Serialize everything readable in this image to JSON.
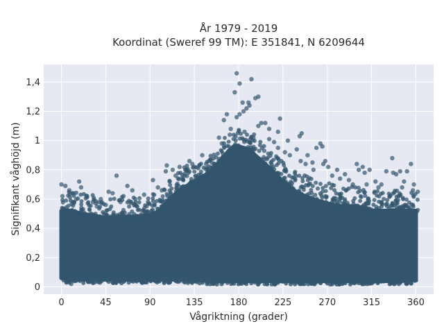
{
  "chart_data": {
    "type": "scatter",
    "title_line1": "År 1979 - 2019",
    "title_line2": "Koordinat (Sweref 99 TM): E 351841, N 6209644",
    "xlabel": "Vågriktning (grader)",
    "ylabel": "Signifikant våghöjd (m)",
    "xlim": [
      -18,
      378
    ],
    "ylim": [
      -0.05,
      1.52
    ],
    "x_ticks": [
      0,
      45,
      90,
      135,
      180,
      225,
      270,
      315,
      360
    ],
    "x_tick_labels": [
      "0",
      "45",
      "90",
      "135",
      "180",
      "225",
      "270",
      "315",
      "360"
    ],
    "y_ticks": [
      0,
      0.2,
      0.4,
      0.6,
      0.8,
      1.0,
      1.2,
      1.4
    ],
    "y_tick_labels": [
      "0",
      "0,2",
      "0,4",
      "0,6",
      "0,8",
      "1",
      "1,2",
      "1,4"
    ],
    "grid": true,
    "marker_color": "#33566e",
    "background_color": "#e6e9f1",
    "density_envelope": {
      "x": [
        0,
        10,
        20,
        30,
        45,
        60,
        75,
        90,
        100,
        110,
        120,
        135,
        150,
        160,
        170,
        175,
        180,
        190,
        200,
        210,
        225,
        240,
        255,
        270,
        285,
        300,
        315,
        330,
        345,
        360
      ],
      "lower": [
        0.06,
        0.05,
        0.05,
        0.05,
        0.05,
        0.05,
        0.05,
        0.05,
        0.05,
        0.05,
        0.05,
        0.05,
        0.04,
        0.04,
        0.04,
        0.04,
        0.04,
        0.04,
        0.04,
        0.04,
        0.04,
        0.04,
        0.04,
        0.04,
        0.04,
        0.04,
        0.04,
        0.04,
        0.04,
        0.05
      ],
      "upper": [
        0.52,
        0.52,
        0.5,
        0.49,
        0.47,
        0.48,
        0.48,
        0.49,
        0.52,
        0.6,
        0.66,
        0.72,
        0.78,
        0.85,
        0.93,
        0.96,
        0.96,
        0.94,
        0.88,
        0.82,
        0.72,
        0.64,
        0.6,
        0.57,
        0.55,
        0.55,
        0.52,
        0.52,
        0.52,
        0.52
      ]
    },
    "outlier_points": [
      [
        178,
        1.46
      ],
      [
        193,
        1.42
      ],
      [
        181,
        1.39
      ],
      [
        176,
        1.33
      ],
      [
        200,
        1.3
      ],
      [
        197,
        1.29
      ],
      [
        184,
        1.26
      ],
      [
        190,
        1.26
      ],
      [
        191,
        1.24
      ],
      [
        188,
        1.22
      ],
      [
        185,
        1.2
      ],
      [
        168,
        1.18
      ],
      [
        181,
        1.18
      ],
      [
        178,
        1.16
      ],
      [
        222,
        1.15
      ],
      [
        165,
        1.14
      ],
      [
        203,
        1.12
      ],
      [
        207,
        1.12
      ],
      [
        200,
        1.1
      ],
      [
        211,
        1.08
      ],
      [
        172,
        1.08
      ],
      [
        220,
        1.06
      ],
      [
        244,
        1.05
      ],
      [
        242,
        1.03
      ],
      [
        160,
        1.02
      ],
      [
        211,
        1.01
      ],
      [
        230,
        1.0
      ],
      [
        263,
        0.98
      ],
      [
        265,
        0.96
      ],
      [
        259,
        0.95
      ],
      [
        220,
        0.95
      ],
      [
        239,
        0.94
      ],
      [
        206,
        0.93
      ],
      [
        227,
        0.92
      ],
      [
        143,
        0.9
      ],
      [
        250,
        0.9
      ],
      [
        243,
        0.86
      ],
      [
        268,
        0.86
      ],
      [
        255,
        0.85
      ],
      [
        336,
        0.88
      ],
      [
        306,
        0.82
      ],
      [
        302,
        0.8
      ],
      [
        313,
        0.8
      ],
      [
        280,
        0.8
      ],
      [
        308,
        0.78
      ],
      [
        266,
        0.84
      ],
      [
        130,
        0.86
      ],
      [
        355,
        0.84
      ],
      [
        271,
        0.82
      ],
      [
        300,
        0.84
      ],
      [
        107,
        0.83
      ],
      [
        120,
        0.82
      ],
      [
        133,
        0.84
      ],
      [
        147,
        0.84
      ],
      [
        135,
        0.82
      ],
      [
        156,
        0.82
      ],
      [
        113,
        0.8
      ],
      [
        106,
        0.79
      ],
      [
        129,
        0.78
      ],
      [
        330,
        0.79
      ],
      [
        344,
        0.79
      ],
      [
        351,
        0.79
      ],
      [
        337,
        0.78
      ],
      [
        340,
        0.77
      ],
      [
        288,
        0.77
      ],
      [
        56,
        0.76
      ],
      [
        93,
        0.73
      ],
      [
        18,
        0.72
      ],
      [
        0,
        0.7
      ],
      [
        4,
        0.69
      ],
      [
        20,
        0.68
      ],
      [
        67,
        0.69
      ],
      [
        72,
        0.66
      ],
      [
        84,
        0.63
      ],
      [
        63,
        0.62
      ],
      [
        48,
        0.65
      ],
      [
        52,
        0.64
      ],
      [
        40,
        0.6
      ],
      [
        32,
        0.58
      ],
      [
        26,
        0.62
      ],
      [
        8,
        0.66
      ],
      [
        12,
        0.64
      ],
      [
        98,
        0.68
      ],
      [
        102,
        0.66
      ],
      [
        110,
        0.72
      ],
      [
        116,
        0.76
      ],
      [
        122,
        0.74
      ],
      [
        127,
        0.8
      ],
      [
        140,
        0.83
      ],
      [
        150,
        0.86
      ],
      [
        163,
        0.98
      ],
      [
        171,
        1.04
      ],
      [
        186,
        1.06
      ],
      [
        195,
        1.02
      ],
      [
        216,
        0.99
      ],
      [
        232,
        0.9
      ],
      [
        248,
        0.84
      ],
      [
        256,
        0.8
      ],
      [
        275,
        0.76
      ],
      [
        283,
        0.74
      ],
      [
        292,
        0.73
      ],
      [
        296,
        0.7
      ],
      [
        319,
        0.72
      ],
      [
        325,
        0.7
      ],
      [
        348,
        0.72
      ],
      [
        358,
        0.7
      ],
      [
        362,
        0.65
      ],
      [
        1,
        0.62
      ],
      [
        357,
        0.66
      ],
      [
        346,
        0.68
      ],
      [
        322,
        0.68
      ],
      [
        310,
        0.7
      ],
      [
        45,
        0.56
      ],
      [
        75,
        0.6
      ],
      [
        88,
        0.58
      ],
      [
        60,
        0.58
      ],
      [
        36,
        0.55
      ],
      [
        15,
        0.6
      ],
      [
        5,
        0.03
      ],
      [
        10,
        0.02
      ],
      [
        110,
        0.03
      ],
      [
        200,
        0.02
      ],
      [
        300,
        0.03
      ],
      [
        338,
        0.02
      ]
    ]
  }
}
